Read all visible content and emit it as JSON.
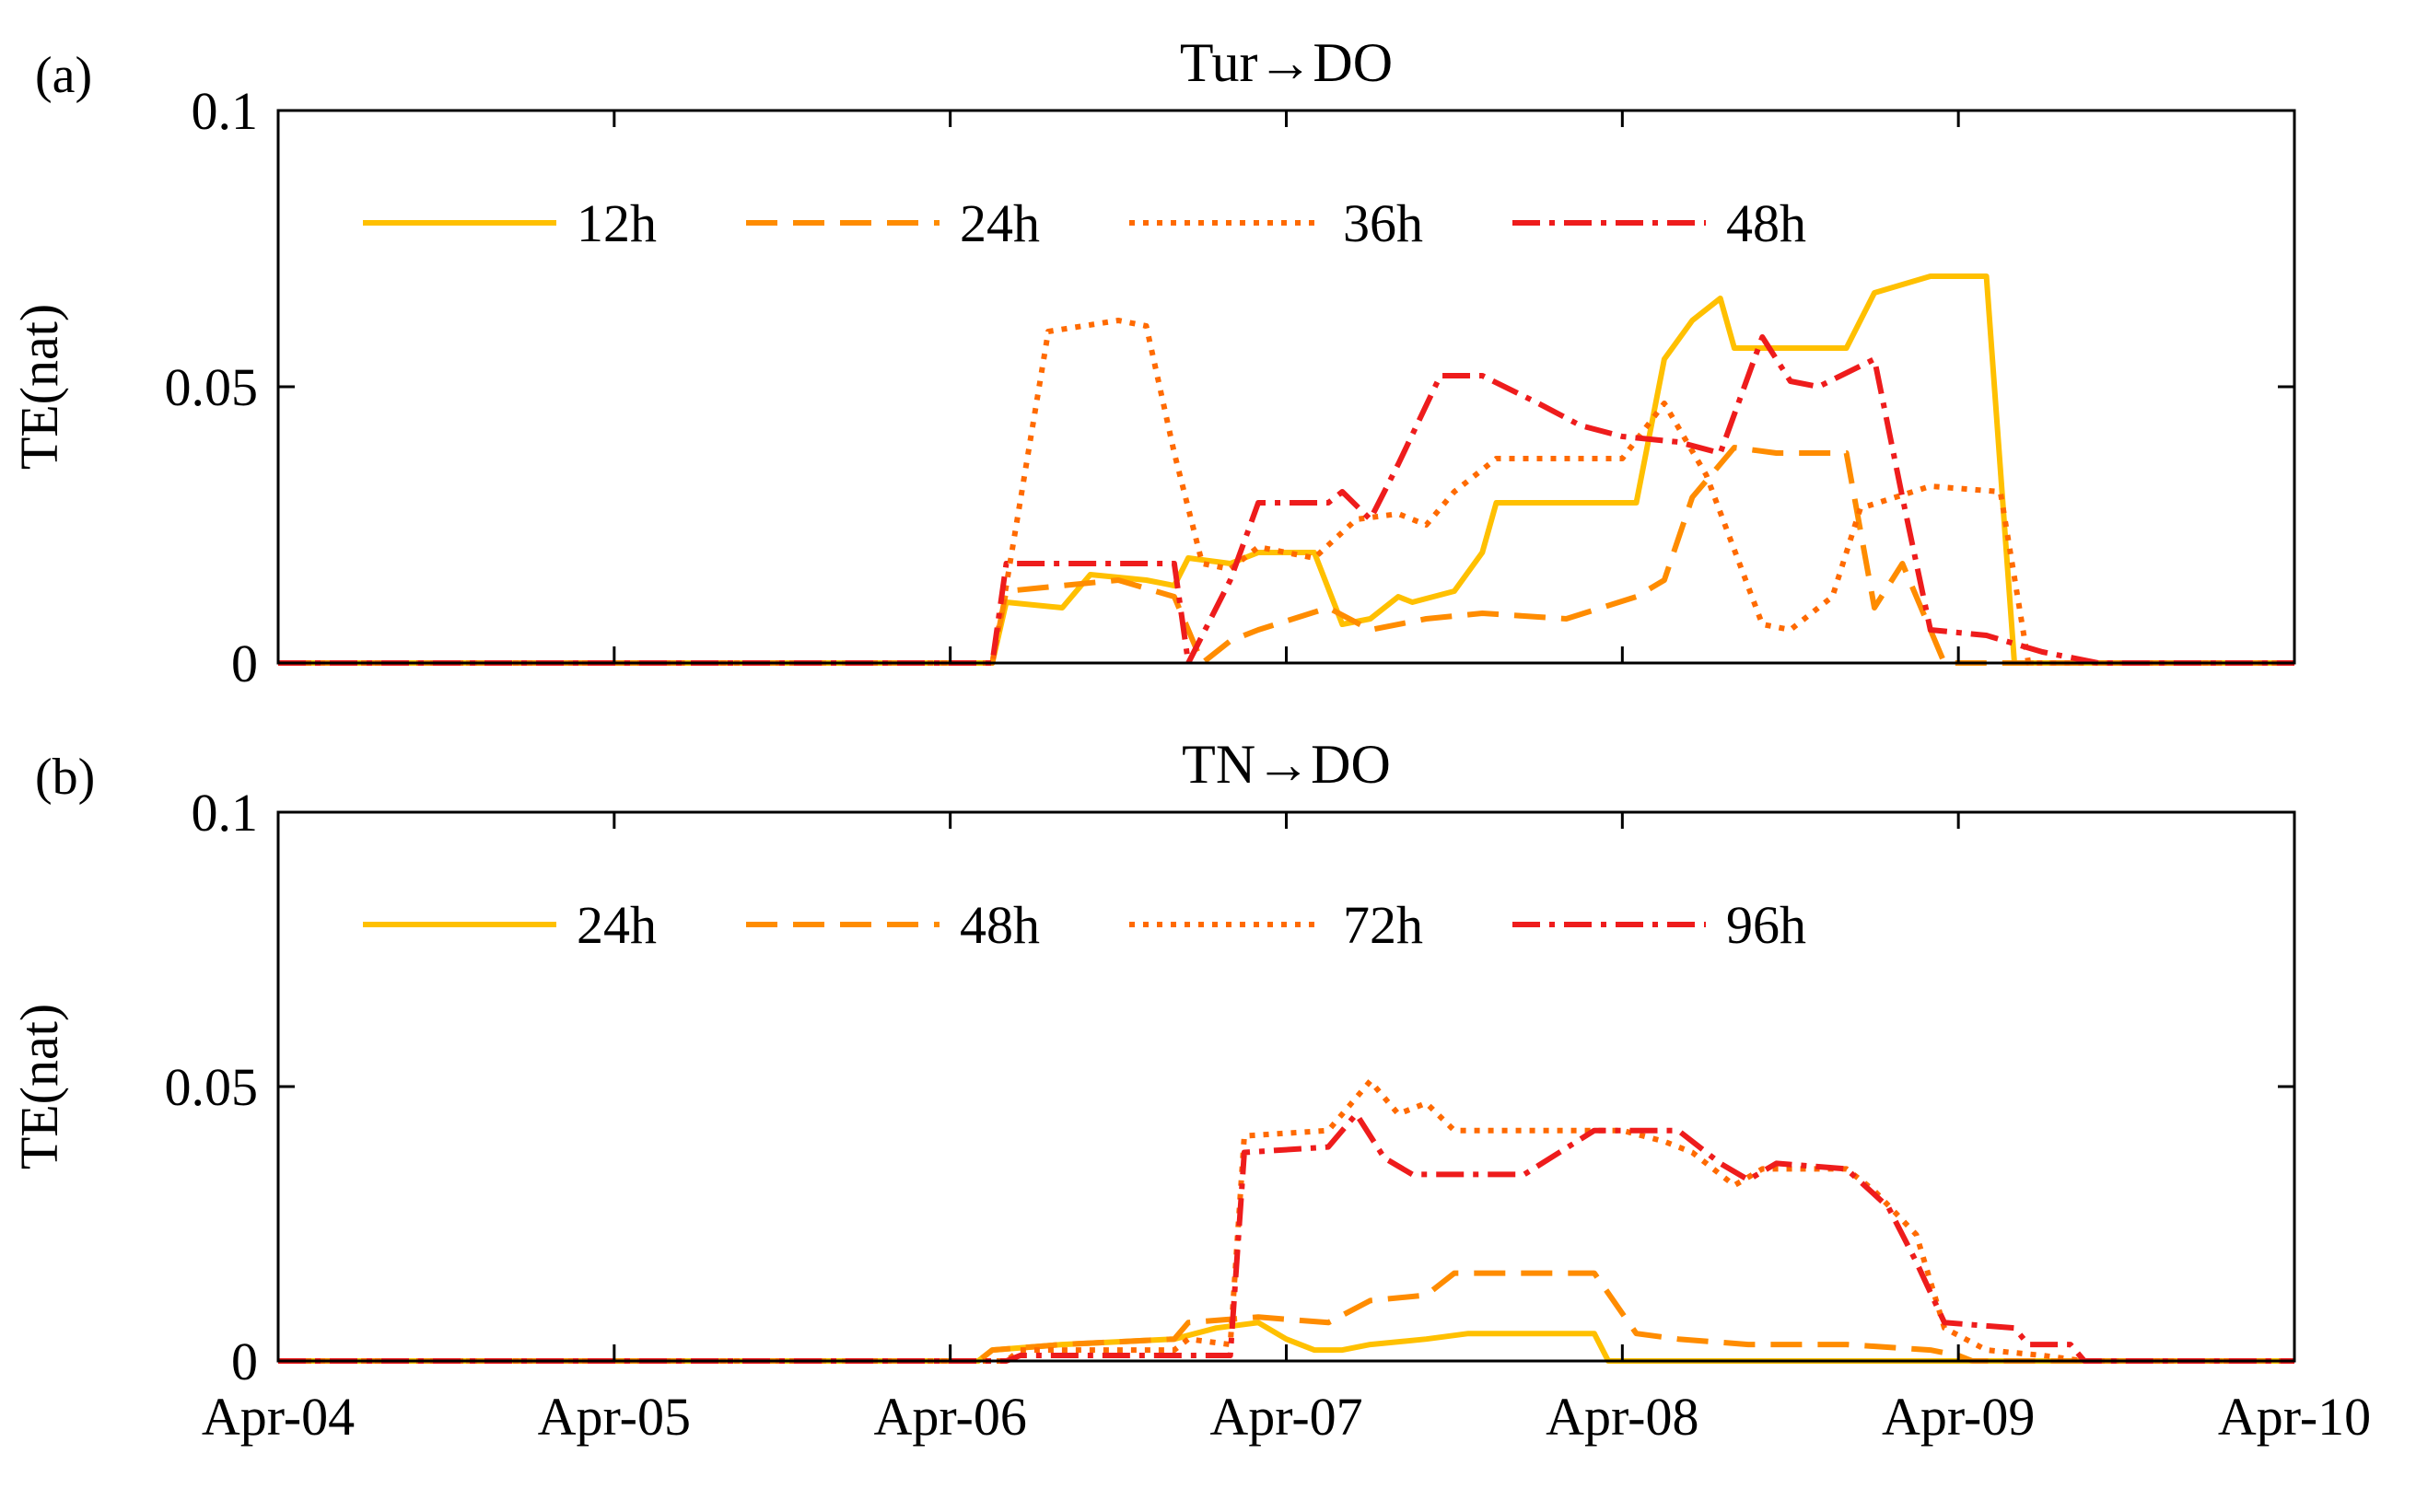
{
  "chart_data": [
    {
      "type": "line",
      "panel_label": "(a)",
      "title": "Tur→DO",
      "xlabel": "",
      "ylabel": "TE(nat)",
      "ylim": [
        0,
        0.1
      ],
      "yticks": [
        0,
        0.05,
        0.1
      ],
      "ytick_labels": [
        "0",
        "0.05",
        "0.1"
      ],
      "xlim": [
        "2023-04-04T00:00",
        "2023-04-10T00:00"
      ],
      "xticks": [
        "2023-04-04",
        "2023-04-05",
        "2023-04-06",
        "2023-04-07",
        "2023-04-08",
        "2023-04-09",
        "2023-04-10"
      ],
      "xtick_labels": [],
      "grid": false,
      "legend_position": "top-left, single row",
      "series": [
        {
          "name": "12h",
          "color": "#FFC000",
          "style": "solid",
          "points": [
            [
              "2023-04-04T00:00",
              0
            ],
            [
              "2023-04-06T03:00",
              0
            ],
            [
              "2023-04-06T04:00",
              0.011
            ],
            [
              "2023-04-06T08:00",
              0.01
            ],
            [
              "2023-04-06T10:00",
              0.016
            ],
            [
              "2023-04-06T14:00",
              0.015
            ],
            [
              "2023-04-06T16:00",
              0.014
            ],
            [
              "2023-04-06T17:00",
              0.019
            ],
            [
              "2023-04-06T20:00",
              0.018
            ],
            [
              "2023-04-06T22:00",
              0.02
            ],
            [
              "2023-04-07T02:00",
              0.02
            ],
            [
              "2023-04-07T04:00",
              0.007
            ],
            [
              "2023-04-07T06:00",
              0.008
            ],
            [
              "2023-04-07T08:00",
              0.012
            ],
            [
              "2023-04-07T09:00",
              0.011
            ],
            [
              "2023-04-07T12:00",
              0.013
            ],
            [
              "2023-04-07T14:00",
              0.02
            ],
            [
              "2023-04-07T15:00",
              0.029
            ],
            [
              "2023-04-08T01:00",
              0.029
            ],
            [
              "2023-04-08T03:00",
              0.055
            ],
            [
              "2023-04-08T05:00",
              0.062
            ],
            [
              "2023-04-08T07:00",
              0.066
            ],
            [
              "2023-04-08T08:00",
              0.057
            ],
            [
              "2023-04-08T16:00",
              0.057
            ],
            [
              "2023-04-08T18:00",
              0.067
            ],
            [
              "2023-04-08T22:00",
              0.07
            ],
            [
              "2023-04-09T02:00",
              0.07
            ],
            [
              "2023-04-09T04:00",
              0
            ],
            [
              "2023-04-10T00:00",
              0
            ]
          ]
        },
        {
          "name": "24h",
          "color": "#FF8C00",
          "style": "dashed",
          "points": [
            [
              "2023-04-04T00:00",
              0
            ],
            [
              "2023-04-06T03:00",
              0
            ],
            [
              "2023-04-06T04:00",
              0.013
            ],
            [
              "2023-04-06T12:00",
              0.015
            ],
            [
              "2023-04-06T16:00",
              0.012
            ],
            [
              "2023-04-06T18:00",
              0
            ],
            [
              "2023-04-06T20:00",
              0.004
            ],
            [
              "2023-04-06T22:00",
              0.006
            ],
            [
              "2023-04-07T03:00",
              0.01
            ],
            [
              "2023-04-07T06:00",
              0.006
            ],
            [
              "2023-04-07T10:00",
              0.008
            ],
            [
              "2023-04-07T14:00",
              0.009
            ],
            [
              "2023-04-07T20:00",
              0.008
            ],
            [
              "2023-04-08T01:00",
              0.012
            ],
            [
              "2023-04-08T03:00",
              0.015
            ],
            [
              "2023-04-08T05:00",
              0.03
            ],
            [
              "2023-04-08T08:00",
              0.039
            ],
            [
              "2023-04-08T11:00",
              0.038
            ],
            [
              "2023-04-08T16:00",
              0.038
            ],
            [
              "2023-04-08T18:00",
              0.01
            ],
            [
              "2023-04-08T20:00",
              0.018
            ],
            [
              "2023-04-08T23:00",
              0
            ],
            [
              "2023-04-10T00:00",
              0
            ]
          ]
        },
        {
          "name": "36h",
          "color": "#FF6A00",
          "style": "dotted",
          "points": [
            [
              "2023-04-04T00:00",
              0
            ],
            [
              "2023-04-06T03:00",
              0
            ],
            [
              "2023-04-06T04:00",
              0.014
            ],
            [
              "2023-04-06T07:00",
              0.06
            ],
            [
              "2023-04-06T12:00",
              0.062
            ],
            [
              "2023-04-06T14:00",
              0.061
            ],
            [
              "2023-04-06T16:00",
              0.038
            ],
            [
              "2023-04-06T18:00",
              0.018
            ],
            [
              "2023-04-06T20:00",
              0.017
            ],
            [
              "2023-04-06T22:00",
              0.021
            ],
            [
              "2023-04-07T02:00",
              0.019
            ],
            [
              "2023-04-07T05:00",
              0.026
            ],
            [
              "2023-04-07T08:00",
              0.027
            ],
            [
              "2023-04-07T10:00",
              0.025
            ],
            [
              "2023-04-07T12:00",
              0.031
            ],
            [
              "2023-04-07T15:00",
              0.037
            ],
            [
              "2023-04-08T00:00",
              0.037
            ],
            [
              "2023-04-08T03:00",
              0.047
            ],
            [
              "2023-04-08T06:00",
              0.034
            ],
            [
              "2023-04-08T10:00",
              0.007
            ],
            [
              "2023-04-08T12:00",
              0.006
            ],
            [
              "2023-04-08T15:00",
              0.012
            ],
            [
              "2023-04-08T17:00",
              0.028
            ],
            [
              "2023-04-08T22:00",
              0.032
            ],
            [
              "2023-04-09T03:00",
              0.031
            ],
            [
              "2023-04-09T05:00",
              0
            ],
            [
              "2023-04-10T00:00",
              0
            ]
          ]
        },
        {
          "name": "48h",
          "color": "#EE1C1C",
          "style": "dashdot",
          "points": [
            [
              "2023-04-04T00:00",
              0
            ],
            [
              "2023-04-06T03:00",
              0
            ],
            [
              "2023-04-06T04:00",
              0.018
            ],
            [
              "2023-04-06T16:00",
              0.018
            ],
            [
              "2023-04-06T17:00",
              0
            ],
            [
              "2023-04-06T20:00",
              0.015
            ],
            [
              "2023-04-06T22:00",
              0.029
            ],
            [
              "2023-04-07T03:00",
              0.029
            ],
            [
              "2023-04-07T04:00",
              0.031
            ],
            [
              "2023-04-07T06:00",
              0.026
            ],
            [
              "2023-04-07T08:00",
              0.036
            ],
            [
              "2023-04-07T11:00",
              0.052
            ],
            [
              "2023-04-07T14:00",
              0.052
            ],
            [
              "2023-04-07T18:00",
              0.047
            ],
            [
              "2023-04-07T21:00",
              0.043
            ],
            [
              "2023-04-08T00:00",
              0.041
            ],
            [
              "2023-04-08T04:00",
              0.04
            ],
            [
              "2023-04-08T07:00",
              0.038
            ],
            [
              "2023-04-08T10:00",
              0.059
            ],
            [
              "2023-04-08T12:00",
              0.051
            ],
            [
              "2023-04-08T14:00",
              0.05
            ],
            [
              "2023-04-08T18:00",
              0.055
            ],
            [
              "2023-04-08T20:00",
              0.03
            ],
            [
              "2023-04-08T22:00",
              0.006
            ],
            [
              "2023-04-09T02:00",
              0.005
            ],
            [
              "2023-04-09T06:00",
              0.002
            ],
            [
              "2023-04-09T10:00",
              0
            ],
            [
              "2023-04-10T00:00",
              0
            ]
          ]
        }
      ]
    },
    {
      "type": "line",
      "panel_label": "(b)",
      "title": "TN→DO",
      "xlabel": "",
      "ylabel": "TE(nat)",
      "ylim": [
        0,
        0.1
      ],
      "yticks": [
        0,
        0.05,
        0.1
      ],
      "ytick_labels": [
        "0",
        "0.05",
        "0.1"
      ],
      "xlim": [
        "2023-04-04T00:00",
        "2023-04-10T00:00"
      ],
      "xticks": [
        "2023-04-04",
        "2023-04-05",
        "2023-04-06",
        "2023-04-07",
        "2023-04-08",
        "2023-04-09",
        "2023-04-10"
      ],
      "xtick_labels": [
        "Apr-04",
        "Apr-05",
        "Apr-06",
        "Apr-07",
        "Apr-08",
        "Apr-09",
        "Apr-10"
      ],
      "grid": false,
      "legend_position": "top-left, single row",
      "series": [
        {
          "name": "24h",
          "color": "#FFC000",
          "style": "solid",
          "points": [
            [
              "2023-04-04T00:00",
              0
            ],
            [
              "2023-04-06T02:00",
              0
            ],
            [
              "2023-04-06T03:00",
              0.002
            ],
            [
              "2023-04-06T08:00",
              0.003
            ],
            [
              "2023-04-06T16:00",
              0.004
            ],
            [
              "2023-04-06T19:00",
              0.006
            ],
            [
              "2023-04-06T22:00",
              0.007
            ],
            [
              "2023-04-07T00:00",
              0.004
            ],
            [
              "2023-04-07T02:00",
              0.002
            ],
            [
              "2023-04-07T04:00",
              0.002
            ],
            [
              "2023-04-07T06:00",
              0.003
            ],
            [
              "2023-04-07T10:00",
              0.004
            ],
            [
              "2023-04-07T13:00",
              0.005
            ],
            [
              "2023-04-07T22:00",
              0.005
            ],
            [
              "2023-04-07T23:00",
              0
            ],
            [
              "2023-04-10T00:00",
              0
            ]
          ]
        },
        {
          "name": "48h",
          "color": "#FF8C00",
          "style": "dashed",
          "points": [
            [
              "2023-04-04T00:00",
              0
            ],
            [
              "2023-04-06T02:00",
              0
            ],
            [
              "2023-04-06T03:00",
              0.002
            ],
            [
              "2023-04-06T08:00",
              0.003
            ],
            [
              "2023-04-06T16:00",
              0.004
            ],
            [
              "2023-04-06T17:00",
              0.007
            ],
            [
              "2023-04-06T22:00",
              0.008
            ],
            [
              "2023-04-07T03:00",
              0.007
            ],
            [
              "2023-04-07T06:00",
              0.011
            ],
            [
              "2023-04-07T10:00",
              0.012
            ],
            [
              "2023-04-07T12:00",
              0.016
            ],
            [
              "2023-04-07T22:00",
              0.016
            ],
            [
              "2023-04-08T01:00",
              0.005
            ],
            [
              "2023-04-08T04:00",
              0.004
            ],
            [
              "2023-04-08T09:00",
              0.003
            ],
            [
              "2023-04-08T16:00",
              0.003
            ],
            [
              "2023-04-08T22:00",
              0.002
            ],
            [
              "2023-04-09T00:00",
              0.001
            ],
            [
              "2023-04-09T01:00",
              0
            ],
            [
              "2023-04-10T00:00",
              0
            ]
          ]
        },
        {
          "name": "72h",
          "color": "#FF6A00",
          "style": "dotted",
          "points": [
            [
              "2023-04-04T00:00",
              0
            ],
            [
              "2023-04-06T04:00",
              0
            ],
            [
              "2023-04-06T05:00",
              0.002
            ],
            [
              "2023-04-06T16:00",
              0.002
            ],
            [
              "2023-04-06T17:00",
              0.004
            ],
            [
              "2023-04-06T20:00",
              0.003
            ],
            [
              "2023-04-06T21:00",
              0.041
            ],
            [
              "2023-04-07T03:00",
              0.042
            ],
            [
              "2023-04-07T06:00",
              0.051
            ],
            [
              "2023-04-07T08:00",
              0.045
            ],
            [
              "2023-04-07T10:00",
              0.047
            ],
            [
              "2023-04-07T12:00",
              0.042
            ],
            [
              "2023-04-08T00:00",
              0.042
            ],
            [
              "2023-04-08T03:00",
              0.04
            ],
            [
              "2023-04-08T05:00",
              0.038
            ],
            [
              "2023-04-08T08:00",
              0.032
            ],
            [
              "2023-04-08T10:00",
              0.035
            ],
            [
              "2023-04-08T16:00",
              0.035
            ],
            [
              "2023-04-08T18:00",
              0.031
            ],
            [
              "2023-04-08T21:00",
              0.023
            ],
            [
              "2023-04-08T23:00",
              0.006
            ],
            [
              "2023-04-09T02:00",
              0.002
            ],
            [
              "2023-04-09T06:00",
              0.001
            ],
            [
              "2023-04-09T09:00",
              0
            ],
            [
              "2023-04-10T00:00",
              0
            ]
          ]
        },
        {
          "name": "96h",
          "color": "#EE1C1C",
          "style": "dashdot",
          "points": [
            [
              "2023-04-04T00:00",
              0
            ],
            [
              "2023-04-06T04:00",
              0
            ],
            [
              "2023-04-06T05:00",
              0.001
            ],
            [
              "2023-04-06T20:00",
              0.001
            ],
            [
              "2023-04-06T21:00",
              0.038
            ],
            [
              "2023-04-07T03:00",
              0.039
            ],
            [
              "2023-04-07T05:00",
              0.045
            ],
            [
              "2023-04-07T07:00",
              0.037
            ],
            [
              "2023-04-07T09:00",
              0.034
            ],
            [
              "2023-04-07T17:00",
              0.034
            ],
            [
              "2023-04-07T22:00",
              0.042
            ],
            [
              "2023-04-08T04:00",
              0.042
            ],
            [
              "2023-04-08T07:00",
              0.036
            ],
            [
              "2023-04-08T09:00",
              0.033
            ],
            [
              "2023-04-08T11:00",
              0.036
            ],
            [
              "2023-04-08T16:00",
              0.035
            ],
            [
              "2023-04-08T19:00",
              0.028
            ],
            [
              "2023-04-08T21:00",
              0.018
            ],
            [
              "2023-04-08T23:00",
              0.007
            ],
            [
              "2023-04-09T04:00",
              0.006
            ],
            [
              "2023-04-09T05:00",
              0.003
            ],
            [
              "2023-04-09T08:00",
              0.003
            ],
            [
              "2023-04-09T09:00",
              0
            ],
            [
              "2023-04-10T00:00",
              0
            ]
          ]
        }
      ]
    }
  ]
}
